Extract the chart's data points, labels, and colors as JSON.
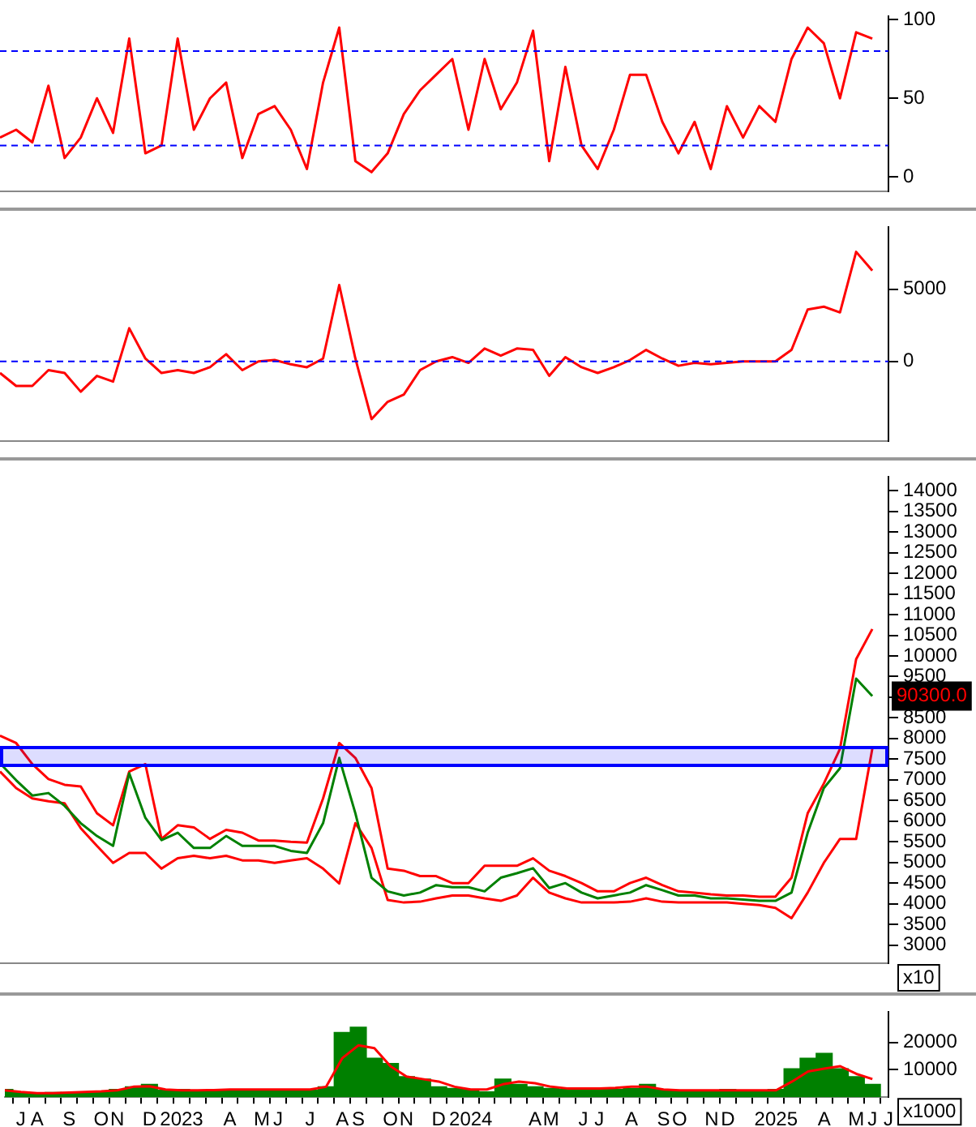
{
  "chart_data": [
    {
      "type": "line",
      "categories": [
        null,
        null,
        null,
        null,
        null,
        null,
        null,
        null,
        null,
        null,
        null,
        null,
        null,
        null,
        null,
        null,
        null,
        null,
        null,
        null,
        null,
        null,
        null,
        null,
        null,
        null,
        null,
        null,
        null,
        null,
        null,
        null,
        null,
        null,
        null,
        null,
        null,
        null,
        null,
        null,
        null,
        null,
        null,
        null,
        null,
        null,
        null,
        null,
        null,
        null,
        null,
        null,
        null,
        null,
        null,
        null
      ],
      "series": [
        {
          "color": "#ff0000",
          "values": [
            25,
            30,
            22,
            58,
            12,
            25,
            50,
            28,
            88,
            15,
            20,
            88,
            30,
            50,
            60,
            12,
            40,
            45,
            30,
            5,
            60,
            95,
            10,
            3,
            15,
            40,
            55,
            65,
            75,
            30,
            75,
            43,
            60,
            93,
            10,
            70,
            20,
            5,
            30,
            65,
            65,
            35,
            15,
            35,
            5,
            45,
            25,
            45,
            35,
            75,
            95,
            85,
            50,
            92,
            88,
            null
          ]
        }
      ],
      "ylim": [
        -9,
        102
      ],
      "yticks": [
        0,
        50,
        100
      ],
      "tick_labels": "y",
      "ref_lines": [
        {
          "axis": "y",
          "value": 80,
          "color": "#0000ff",
          "line_style": "dashed"
        },
        {
          "axis": "y",
          "value": 20,
          "color": "#0000ff",
          "line_style": "dashed"
        }
      ]
    },
    {
      "type": "line",
      "categories": [
        null,
        null,
        null,
        null,
        null,
        null,
        null,
        null,
        null,
        null,
        null,
        null,
        null,
        null,
        null,
        null,
        null,
        null,
        null,
        null,
        null,
        null,
        null,
        null,
        null,
        null,
        null,
        null,
        null,
        null,
        null,
        null,
        null,
        null,
        null,
        null,
        null,
        null,
        null,
        null,
        null,
        null,
        null,
        null,
        null,
        null,
        null,
        null,
        null,
        null,
        null,
        null,
        null,
        null,
        null,
        null
      ],
      "series": [
        {
          "color": "#ff0000",
          "values": [
            -800,
            -1700,
            -1700,
            -600,
            -800,
            -2100,
            -1000,
            -1400,
            2300,
            200,
            -800,
            -600,
            -800,
            -400,
            500,
            -600,
            0,
            100,
            -200,
            -400,
            200,
            5300,
            200,
            -4000,
            -2800,
            -2300,
            -600,
            0,
            300,
            -100,
            900,
            400,
            900,
            800,
            -1000,
            300,
            -400,
            -800,
            -400,
            100,
            800,
            200,
            -300,
            -100,
            -200,
            -100,
            0,
            0,
            0,
            800,
            3600,
            3800,
            3400,
            7600,
            6300,
            null
          ]
        }
      ],
      "ylim": [
        -5500,
        9300
      ],
      "yticks": [
        0,
        5000
      ],
      "tick_labels": "y",
      "ref_lines": [
        {
          "axis": "y",
          "value": 0,
          "color": "#0000ff",
          "line_style": "dashed"
        }
      ]
    },
    {
      "type": "line",
      "categories": [
        null,
        null,
        null,
        null,
        null,
        null,
        null,
        null,
        null,
        null,
        null,
        null,
        null,
        null,
        null,
        null,
        null,
        null,
        null,
        null,
        null,
        null,
        null,
        null,
        null,
        null,
        null,
        null,
        null,
        null,
        null,
        null,
        null,
        null,
        null,
        null,
        null,
        null,
        null,
        null,
        null,
        null,
        null,
        null,
        null,
        null,
        null,
        null,
        null,
        null,
        null,
        null,
        null,
        null,
        null,
        null
      ],
      "series": [
        {
          "color": "#008000",
          "values": [
            7400,
            6990,
            6620,
            6680,
            6370,
            5950,
            5640,
            5400,
            7160,
            6080,
            5540,
            5720,
            5350,
            5350,
            5640,
            5400,
            5400,
            5400,
            5280,
            5230,
            5950,
            7530,
            6190,
            4630,
            4300,
            4200,
            4270,
            4450,
            4400,
            4400,
            4300,
            4630,
            4740,
            4860,
            4380,
            4500,
            4270,
            4130,
            4200,
            4270,
            4450,
            4330,
            4200,
            4200,
            4130,
            4130,
            4100,
            4070,
            4070,
            4270,
            5720,
            6800,
            7280,
            9450,
            9030,
            null
          ]
        },
        {
          "color": "#ff0000",
          "values": [
            8070,
            7890,
            7380,
            7020,
            6880,
            6840,
            6190,
            5900,
            7200,
            7380,
            5570,
            5900,
            5850,
            5570,
            5790,
            5720,
            5530,
            5530,
            5500,
            5480,
            6550,
            7890,
            7530,
            6800,
            4850,
            4800,
            4670,
            4670,
            4500,
            4500,
            4920,
            4920,
            4920,
            5100,
            4800,
            4670,
            4500,
            4300,
            4300,
            4500,
            4630,
            4450,
            4300,
            4270,
            4230,
            4200,
            4200,
            4170,
            4170,
            4630,
            6190,
            6910,
            7750,
            9920,
            10650,
            null
          ]
        },
        {
          "color": "#ff0000",
          "values": [
            7200,
            6800,
            6550,
            6480,
            6430,
            5830,
            5400,
            4990,
            5230,
            5230,
            4850,
            5100,
            5160,
            5100,
            5160,
            5050,
            5050,
            4990,
            5050,
            5100,
            4850,
            4490,
            5950,
            5350,
            4090,
            4030,
            4050,
            4130,
            4200,
            4200,
            4130,
            4070,
            4200,
            4630,
            4270,
            4130,
            4030,
            4030,
            4030,
            4050,
            4130,
            4050,
            4030,
            4030,
            4030,
            4030,
            4000,
            3970,
            3900,
            3650,
            4270,
            4990,
            5570,
            5570,
            7750,
            null
          ]
        }
      ],
      "ylim": [
        2560,
        14330
      ],
      "yticks": [
        3000,
        3500,
        4000,
        4500,
        5000,
        5500,
        6000,
        6500,
        7000,
        7500,
        8000,
        8500,
        {
          "value": 9000,
          "label": null
        },
        9500,
        10000,
        10500,
        11000,
        11500,
        12000,
        12500,
        13000,
        13500,
        14000
      ],
      "tick_labels": "y",
      "bands": [
        {
          "axis": "y",
          "from": 7350,
          "to": 7780,
          "color": "#0000ff"
        }
      ],
      "annotations": [
        "90300.0",
        "x10"
      ]
    },
    {
      "type": "bar",
      "categories": [
        null,
        "J",
        "A",
        null,
        "S",
        null,
        "O",
        "N",
        null,
        "D",
        null,
        "2023",
        null,
        null,
        "A",
        null,
        "M",
        "J",
        null,
        "J",
        null,
        "A",
        "S",
        null,
        "O",
        "N",
        null,
        "D",
        null,
        "2024",
        null,
        null,
        null,
        "A",
        "M",
        null,
        "J",
        "J",
        null,
        "A",
        null,
        "S",
        "O",
        null,
        "N",
        "D",
        null,
        null,
        "2025",
        null,
        null,
        "A",
        null,
        "M",
        "J",
        "J"
      ],
      "series": [
        {
          "color": "#008000",
          "values": [
            2800,
            1900,
            1500,
            1700,
            1700,
            1900,
            2100,
            2800,
            3800,
            4700,
            2500,
            2800,
            2500,
            2500,
            2800,
            2500,
            2500,
            2500,
            2800,
            2500,
            3800,
            23600,
            25500,
            14200,
            12300,
            7500,
            6600,
            3800,
            3200,
            2800,
            1900,
            6600,
            4700,
            3800,
            3200,
            2800,
            2500,
            2800,
            2800,
            3200,
            4700,
            2800,
            2500,
            2500,
            2500,
            2800,
            2500,
            2500,
            2800,
            10400,
            14200,
            16000,
            10400,
            7500,
            4700,
            null
          ]
        },
        {
          "type": "line",
          "color": "#ff0000",
          "values": [
            2500,
            1900,
            1500,
            1500,
            1700,
            1900,
            2100,
            2500,
            3800,
            4000,
            2800,
            2500,
            2500,
            2600,
            2800,
            2800,
            2800,
            2800,
            2800,
            2800,
            3800,
            14200,
            18900,
            17900,
            11300,
            7500,
            6600,
            5700,
            3800,
            2800,
            2800,
            4700,
            5700,
            5100,
            3800,
            3200,
            3200,
            3200,
            3400,
            3800,
            3800,
            2800,
            2500,
            2500,
            2500,
            2500,
            2500,
            2500,
            2500,
            5700,
            9400,
            10400,
            11300,
            8500,
            6600,
            null
          ]
        }
      ],
      "ylim": [
        0,
        31000
      ],
      "yticks": [
        10000,
        20000
      ],
      "annotations": [
        "x1000"
      ]
    }
  ]
}
